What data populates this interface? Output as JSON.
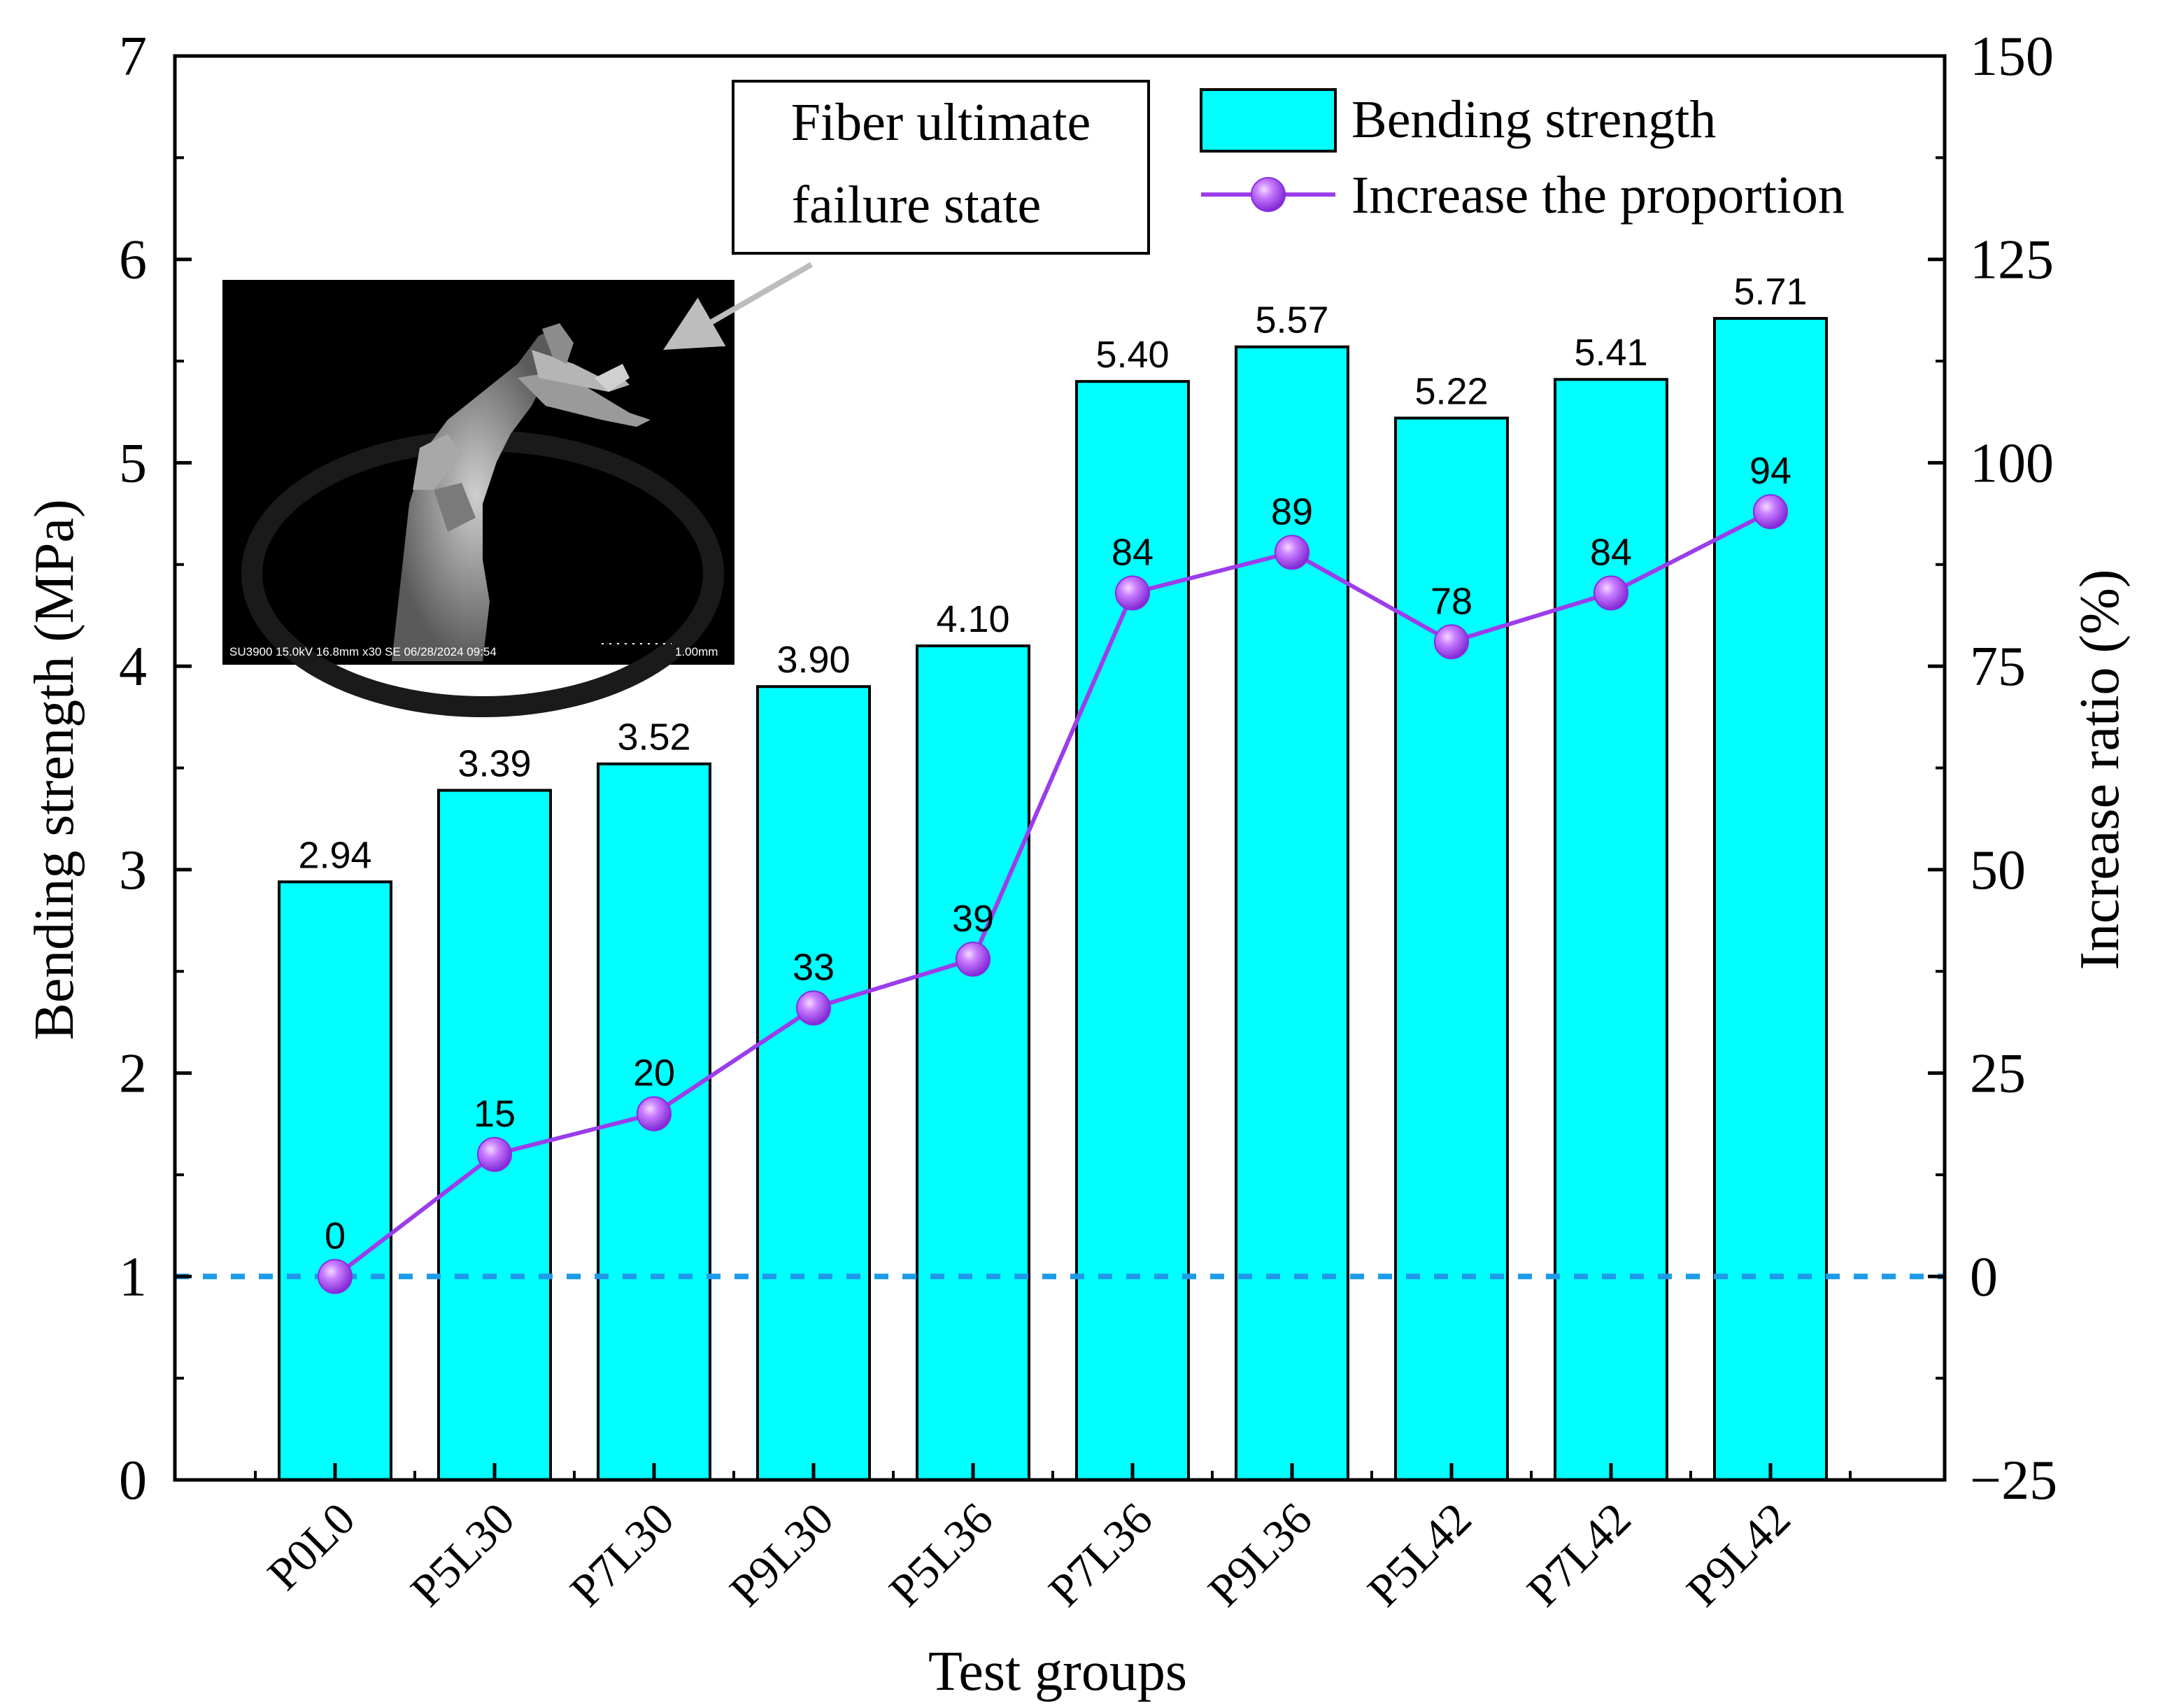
{
  "chart_data": {
    "type": "bar",
    "xlabel": "Test groups",
    "ylabel": "Bending strength (MPa)",
    "y2label": "Increase ratio (%)",
    "categories": [
      "P0L0",
      "P5L30",
      "P7L30",
      "P9L30",
      "P5L36",
      "P7L36",
      "P9L36",
      "P5L42",
      "P7L42",
      "P9L42"
    ],
    "ylim": [
      0,
      7
    ],
    "yticks": [
      0,
      1,
      2,
      3,
      4,
      5,
      6,
      7
    ],
    "y2lim": [
      -25,
      150
    ],
    "y2ticks": [
      -25,
      0,
      25,
      50,
      75,
      100,
      125,
      150
    ],
    "y2tick_labels": [
      "−25",
      "0",
      "25",
      "50",
      "75",
      "100",
      "125",
      "150"
    ],
    "series": [
      {
        "name": "Bending strength",
        "type": "bar",
        "axis": "left",
        "color": "#00FFFF",
        "values": [
          2.94,
          3.39,
          3.52,
          3.9,
          4.1,
          5.4,
          5.57,
          5.22,
          5.41,
          5.71
        ],
        "labels": [
          "2.94",
          "3.39",
          "3.52",
          "3.90",
          "4.10",
          "5.40",
          "5.57",
          "5.22",
          "5.41",
          "5.71"
        ]
      },
      {
        "name": "Increase the proportion",
        "type": "line",
        "axis": "right",
        "color": "#9B3DEB",
        "values": [
          0,
          15,
          20,
          33,
          39,
          84,
          89,
          78,
          84,
          94
        ],
        "labels": [
          "0",
          "15",
          "20",
          "33",
          "39",
          "84",
          "89",
          "78",
          "84",
          "94"
        ]
      }
    ],
    "reference_line": {
      "axis": "left",
      "value": 1,
      "style": "dashed",
      "color": "#1E9BE8"
    },
    "legend": {
      "position": "top-right"
    },
    "annotation": {
      "line1": "Fiber ultimate",
      "line2": "failure state"
    },
    "inset_image": {
      "description_icon": "sem-micrograph",
      "caption": "SU3900 15.0kV 16.8mm x30 SE 06/28/2024 09:54",
      "scale_label": "1.00mm"
    }
  }
}
